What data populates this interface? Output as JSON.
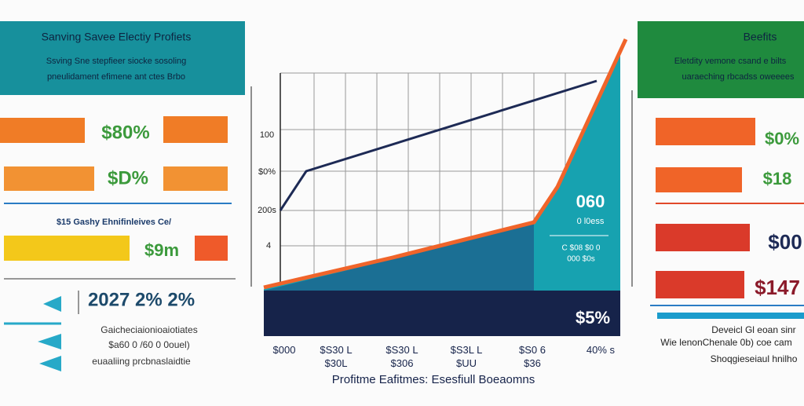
{
  "left_panel": {
    "title": "Sanving Savee Electiy Profiets",
    "lines": [
      "Ssving Sne stepfieer siocke sosoling",
      "pneulidament efimene ant ctes Brbo"
    ],
    "bar_labels": [
      "$80%",
      "$D%"
    ],
    "caption": "$15 Gashy Ehnifinleives Ce/",
    "bar_label_3": "$9m",
    "stat": "2027 2% 2%",
    "notes": [
      "Gaicheciaionioaiotiates",
      "$a60 0 /60 0 0ouel)",
      "euaaliing prcbnaslaidtie"
    ]
  },
  "center_chart": {
    "axis_labels": [
      "100",
      "$0%",
      "200s",
      "4"
    ],
    "callout_big": "060",
    "callout_lines": [
      "0 l0ess",
      "C $08 $0 0",
      "000 $0s"
    ],
    "band_label": "$5%",
    "x_labels": [
      "$000",
      "$S30 L\n$30L",
      "$S30 L\n$306",
      "$S3L L\n$UU",
      "$S0 6\n$36",
      "40% s"
    ],
    "title": "Profitme Eafitmes: Esesfiull Boeaomns"
  },
  "right_panel": {
    "title": "Beefits",
    "lines": [
      "Eletdity vemone csand e bilts",
      "uaraeching rbcadss oweeees"
    ],
    "bar_labels": [
      "$0%",
      "$18",
      "$00",
      "$147"
    ],
    "notes": [
      "Deveicl Gl eoan sinr",
      "Wie lenonChenale 0b) coe cam",
      "Shoqgieseiaul hnilho"
    ]
  }
}
